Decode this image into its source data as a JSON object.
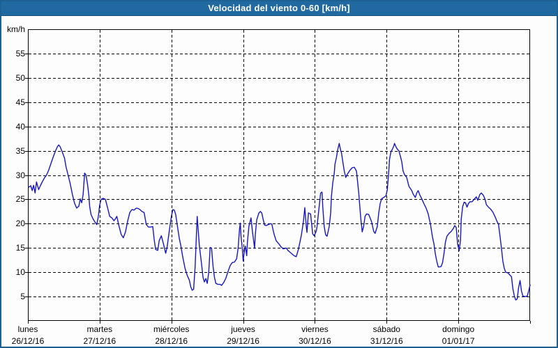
{
  "window": {
    "title": "Velocidad del viento 0-60 [km/h]"
  },
  "colors": {
    "titlebar_bg": "#2069a1",
    "window_border": "#1d6092",
    "background": "#fcfdfc",
    "grid": "#000000",
    "line": "#1616c8",
    "text": "#000000",
    "title_text": "#ffffff"
  },
  "chart_data": {
    "type": "line",
    "title": "Velocidad del viento 0-60 [km/h]",
    "ylabel": "km/h",
    "xlabel": "",
    "ylim": [
      0,
      60
    ],
    "xlim": [
      0,
      7
    ],
    "grid": "dashed",
    "legend": "none",
    "x_unit": "days since lunes 26/12/16 00:00",
    "ytick_labels": [
      5,
      10,
      15,
      20,
      25,
      30,
      35,
      40,
      45,
      50,
      55
    ],
    "day_labels": [
      {
        "name": "lunes",
        "date": "26/12/16"
      },
      {
        "name": "martes",
        "date": "27/12/16"
      },
      {
        "name": "miércoles",
        "date": "28/12/16"
      },
      {
        "name": "jueves",
        "date": "29/12/16"
      },
      {
        "name": "viernes",
        "date": "30/12/16"
      },
      {
        "name": "sábado",
        "date": "31/12/16"
      },
      {
        "name": "domingo",
        "date": "01/01/17"
      }
    ],
    "series": [
      {
        "name": "Velocidad del viento",
        "color": "#1616c8",
        "points": [
          [
            0.01,
            27.5
          ],
          [
            0.04,
            27.8
          ],
          [
            0.06,
            26.8
          ],
          [
            0.08,
            27.9
          ],
          [
            0.1,
            26.3
          ],
          [
            0.12,
            28.6
          ],
          [
            0.15,
            27.0
          ],
          [
            0.18,
            28.0
          ],
          [
            0.2,
            28.6
          ],
          [
            0.23,
            29.4
          ],
          [
            0.26,
            30.0
          ],
          [
            0.29,
            31.0
          ],
          [
            0.32,
            32.3
          ],
          [
            0.35,
            33.6
          ],
          [
            0.38,
            34.8
          ],
          [
            0.41,
            35.8
          ],
          [
            0.43,
            36.2
          ],
          [
            0.45,
            35.8
          ],
          [
            0.48,
            34.7
          ],
          [
            0.51,
            33.5
          ],
          [
            0.53,
            31.8
          ],
          [
            0.56,
            30.0
          ],
          [
            0.59,
            28.2
          ],
          [
            0.62,
            26.0
          ],
          [
            0.65,
            24.2
          ],
          [
            0.68,
            23.2
          ],
          [
            0.71,
            23.6
          ],
          [
            0.73,
            25.1
          ],
          [
            0.75,
            24.3
          ],
          [
            0.77,
            26.0
          ],
          [
            0.79,
            30.4
          ],
          [
            0.81,
            30.0
          ],
          [
            0.83,
            28.2
          ],
          [
            0.85,
            25.8
          ],
          [
            0.86,
            23.6
          ],
          [
            0.88,
            21.9
          ],
          [
            0.91,
            20.9
          ],
          [
            0.94,
            20.2
          ],
          [
            0.96,
            19.8
          ],
          [
            0.98,
            21.3
          ],
          [
            1.0,
            23.8
          ],
          [
            1.02,
            25.0
          ],
          [
            1.05,
            25.2
          ],
          [
            1.08,
            25.0
          ],
          [
            1.11,
            23.3
          ],
          [
            1.14,
            21.5
          ],
          [
            1.17,
            21.2
          ],
          [
            1.2,
            20.6
          ],
          [
            1.22,
            21.0
          ],
          [
            1.24,
            21.5
          ],
          [
            1.27,
            19.5
          ],
          [
            1.3,
            17.8
          ],
          [
            1.33,
            17.1
          ],
          [
            1.36,
            18.3
          ],
          [
            1.39,
            20.5
          ],
          [
            1.42,
            22.3
          ],
          [
            1.45,
            22.9
          ],
          [
            1.48,
            22.8
          ],
          [
            1.51,
            23.2
          ],
          [
            1.54,
            23.1
          ],
          [
            1.57,
            22.8
          ],
          [
            1.59,
            22.5
          ],
          [
            1.62,
            22.3
          ],
          [
            1.65,
            19.8
          ],
          [
            1.68,
            19.3
          ],
          [
            1.71,
            19.3
          ],
          [
            1.74,
            19.4
          ],
          [
            1.76,
            16.8
          ],
          [
            1.78,
            14.7
          ],
          [
            1.81,
            14.5
          ],
          [
            1.83,
            16.5
          ],
          [
            1.86,
            17.5
          ],
          [
            1.89,
            15.8
          ],
          [
            1.92,
            13.9
          ],
          [
            1.94,
            15.1
          ],
          [
            1.97,
            18.4
          ],
          [
            2.0,
            21.5
          ],
          [
            2.02,
            22.9
          ],
          [
            2.04,
            22.8
          ],
          [
            2.06,
            21.9
          ],
          [
            2.09,
            18.9
          ],
          [
            2.11,
            17.0
          ],
          [
            2.13,
            15.6
          ],
          [
            2.16,
            13.0
          ],
          [
            2.19,
            10.8
          ],
          [
            2.22,
            9.4
          ],
          [
            2.25,
            8.4
          ],
          [
            2.27,
            7.0
          ],
          [
            2.29,
            6.3
          ],
          [
            2.31,
            6.5
          ],
          [
            2.33,
            11.0
          ],
          [
            2.36,
            21.5
          ],
          [
            2.39,
            15.5
          ],
          [
            2.42,
            11.8
          ],
          [
            2.44,
            9.0
          ],
          [
            2.46,
            8.0
          ],
          [
            2.48,
            8.7
          ],
          [
            2.5,
            7.7
          ],
          [
            2.52,
            9.9
          ],
          [
            2.54,
            15.1
          ],
          [
            2.56,
            15.0
          ],
          [
            2.58,
            11.3
          ],
          [
            2.6,
            9.0
          ],
          [
            2.62,
            7.7
          ],
          [
            2.65,
            7.5
          ],
          [
            2.68,
            7.5
          ],
          [
            2.7,
            7.3
          ],
          [
            2.73,
            7.9
          ],
          [
            2.76,
            8.8
          ],
          [
            2.79,
            10.2
          ],
          [
            2.82,
            11.4
          ],
          [
            2.85,
            12.0
          ],
          [
            2.88,
            12.1
          ],
          [
            2.91,
            12.8
          ],
          [
            2.93,
            15.0
          ],
          [
            2.95,
            18.9
          ],
          [
            2.96,
            20.1
          ],
          [
            2.97,
            17.5
          ],
          [
            2.99,
            14.7
          ],
          [
            3.0,
            12.3
          ],
          [
            3.02,
            14.7
          ],
          [
            3.03,
            15.4
          ],
          [
            3.05,
            13.4
          ],
          [
            3.06,
            16.1
          ],
          [
            3.08,
            19.4
          ],
          [
            3.11,
            21.2
          ],
          [
            3.13,
            18.4
          ],
          [
            3.15,
            16.1
          ],
          [
            3.16,
            14.9
          ],
          [
            3.17,
            17.9
          ],
          [
            3.19,
            20.8
          ],
          [
            3.22,
            22.2
          ],
          [
            3.24,
            22.5
          ],
          [
            3.26,
            22.2
          ],
          [
            3.28,
            20.8
          ],
          [
            3.3,
            19.7
          ],
          [
            3.32,
            19.6
          ],
          [
            3.35,
            19.8
          ],
          [
            3.38,
            20.0
          ],
          [
            3.4,
            19.9
          ],
          [
            3.43,
            17.9
          ],
          [
            3.46,
            16.5
          ],
          [
            3.5,
            15.8
          ],
          [
            3.53,
            15.2
          ],
          [
            3.56,
            14.8
          ],
          [
            3.6,
            15.0
          ],
          [
            3.63,
            14.4
          ],
          [
            3.67,
            13.9
          ],
          [
            3.71,
            13.4
          ],
          [
            3.74,
            13.2
          ],
          [
            3.77,
            14.7
          ],
          [
            3.81,
            17.5
          ],
          [
            3.84,
            20.4
          ],
          [
            3.86,
            23.3
          ],
          [
            3.88,
            19.4
          ],
          [
            3.89,
            18.2
          ],
          [
            3.91,
            22.2
          ],
          [
            3.94,
            22.0
          ],
          [
            3.97,
            17.9
          ],
          [
            3.99,
            17.5
          ],
          [
            4.02,
            18.5
          ],
          [
            4.03,
            19.4
          ],
          [
            4.05,
            22.2
          ],
          [
            4.08,
            26.3
          ],
          [
            4.1,
            26.5
          ],
          [
            4.11,
            23.6
          ],
          [
            4.13,
            19.4
          ],
          [
            4.15,
            17.7
          ],
          [
            4.17,
            17.4
          ],
          [
            4.2,
            19.4
          ],
          [
            4.22,
            22.2
          ],
          [
            4.23,
            25.5
          ],
          [
            4.25,
            28.4
          ],
          [
            4.27,
            30.3
          ],
          [
            4.28,
            32.2
          ],
          [
            4.3,
            33.6
          ],
          [
            4.32,
            35.3
          ],
          [
            4.34,
            36.5
          ],
          [
            4.36,
            35.0
          ],
          [
            4.37,
            34.6
          ],
          [
            4.39,
            32.7
          ],
          [
            4.41,
            30.8
          ],
          [
            4.43,
            29.5
          ],
          [
            4.45,
            30.1
          ],
          [
            4.49,
            31.0
          ],
          [
            4.52,
            31.5
          ],
          [
            4.55,
            31.6
          ],
          [
            4.58,
            30.8
          ],
          [
            4.61,
            26.5
          ],
          [
            4.64,
            21.0
          ],
          [
            4.66,
            18.3
          ],
          [
            4.68,
            19.5
          ],
          [
            4.7,
            21.5
          ],
          [
            4.72,
            22.0
          ],
          [
            4.75,
            21.9
          ],
          [
            4.79,
            20.4
          ],
          [
            4.82,
            18.4
          ],
          [
            4.84,
            18.0
          ],
          [
            4.87,
            19.4
          ],
          [
            4.89,
            22.2
          ],
          [
            4.91,
            24.1
          ],
          [
            4.93,
            25.1
          ],
          [
            4.96,
            25.4
          ],
          [
            4.99,
            25.7
          ],
          [
            5.01,
            27.0
          ],
          [
            5.03,
            30.8
          ],
          [
            5.04,
            33.2
          ],
          [
            5.06,
            34.8
          ],
          [
            5.08,
            35.3
          ],
          [
            5.1,
            36.0
          ],
          [
            5.11,
            36.5
          ],
          [
            5.13,
            35.8
          ],
          [
            5.15,
            35.3
          ],
          [
            5.17,
            35.0
          ],
          [
            5.19,
            34.0
          ],
          [
            5.21,
            32.8
          ],
          [
            5.23,
            30.8
          ],
          [
            5.25,
            30.1
          ],
          [
            5.28,
            29.5
          ],
          [
            5.31,
            27.7
          ],
          [
            5.35,
            26.8
          ],
          [
            5.37,
            26.1
          ],
          [
            5.4,
            25.4
          ],
          [
            5.42,
            26.3
          ],
          [
            5.44,
            26.8
          ],
          [
            5.46,
            26.0
          ],
          [
            5.49,
            25.1
          ],
          [
            5.52,
            24.1
          ],
          [
            5.55,
            23.2
          ],
          [
            5.58,
            22.0
          ],
          [
            5.61,
            20.0
          ],
          [
            5.64,
            17.2
          ],
          [
            5.66,
            15.8
          ],
          [
            5.68,
            13.7
          ],
          [
            5.7,
            12.2
          ],
          [
            5.72,
            11.1
          ],
          [
            5.74,
            11.1
          ],
          [
            5.76,
            11.2
          ],
          [
            5.78,
            12.0
          ],
          [
            5.8,
            13.9
          ],
          [
            5.82,
            16.2
          ],
          [
            5.84,
            17.4
          ],
          [
            5.87,
            18.0
          ],
          [
            5.9,
            18.4
          ],
          [
            5.93,
            19.0
          ],
          [
            5.95,
            19.6
          ],
          [
            5.97,
            19.2
          ],
          [
            5.99,
            15.8
          ],
          [
            6.01,
            14.4
          ],
          [
            6.03,
            16.5
          ],
          [
            6.04,
            21.0
          ],
          [
            6.06,
            23.5
          ],
          [
            6.08,
            24.4
          ],
          [
            6.1,
            24.3
          ],
          [
            6.12,
            23.4
          ],
          [
            6.14,
            24.1
          ],
          [
            6.16,
            24.5
          ],
          [
            6.19,
            24.5
          ],
          [
            6.22,
            25.0
          ],
          [
            6.25,
            25.5
          ],
          [
            6.27,
            24.8
          ],
          [
            6.3,
            26.0
          ],
          [
            6.32,
            26.3
          ],
          [
            6.35,
            25.8
          ],
          [
            6.37,
            25.1
          ],
          [
            6.39,
            23.9
          ],
          [
            6.42,
            23.4
          ],
          [
            6.45,
            23.0
          ],
          [
            6.48,
            22.4
          ],
          [
            6.51,
            21.5
          ],
          [
            6.54,
            20.4
          ],
          [
            6.56,
            19.9
          ],
          [
            6.58,
            17.5
          ],
          [
            6.6,
            15.0
          ],
          [
            6.62,
            12.3
          ],
          [
            6.64,
            10.8
          ],
          [
            6.66,
            10.0
          ],
          [
            6.69,
            9.9
          ],
          [
            6.72,
            9.4
          ],
          [
            6.74,
            9.1
          ],
          [
            6.76,
            6.6
          ],
          [
            6.78,
            5.1
          ],
          [
            6.8,
            4.3
          ],
          [
            6.82,
            4.5
          ],
          [
            6.84,
            6.8
          ],
          [
            6.86,
            8.3
          ],
          [
            6.88,
            6.1
          ],
          [
            6.9,
            5.1
          ],
          [
            6.93,
            5.0
          ],
          [
            6.96,
            5.1
          ],
          [
            6.98,
            6.1
          ],
          [
            7.0,
            7.4
          ]
        ]
      }
    ]
  }
}
